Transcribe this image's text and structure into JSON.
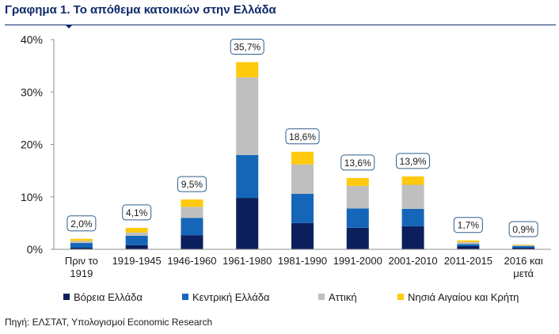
{
  "title": "Γραφημα 1. Το απόθεμα κατοικιών στην Ελλάδα",
  "source": "Πηγή: ΕΛΣΤΑΤ, Υπολογισμοί Economic Research",
  "colors": {
    "rule": "#0f2a6b"
  },
  "chart_data": {
    "type": "bar",
    "stacked": true,
    "categories": [
      [
        "Πριν το",
        "1919"
      ],
      [
        "1919-1945"
      ],
      [
        "1946-1960"
      ],
      [
        "1961-1980"
      ],
      [
        "1981-1990"
      ],
      [
        "1991-2000"
      ],
      [
        "2001-2010"
      ],
      [
        "2011-2015"
      ],
      [
        "2016 και",
        "μετά"
      ]
    ],
    "series": [
      {
        "name": "Βόρεια Ελλάδα",
        "color": "#0b1f5c",
        "values": [
          0.3,
          0.8,
          2.7,
          9.8,
          5.0,
          4.1,
          4.4,
          0.6,
          0.3
        ]
      },
      {
        "name": "Κεντρική  Ελλάδα",
        "color": "#1566b8",
        "values": [
          0.9,
          1.8,
          3.3,
          8.2,
          5.6,
          3.7,
          3.3,
          0.4,
          0.3
        ]
      },
      {
        "name": "Αττική",
        "color": "#bfbfbf",
        "values": [
          0.4,
          0.6,
          2.1,
          14.8,
          5.6,
          4.3,
          4.6,
          0.4,
          0.2
        ]
      },
      {
        "name": "Νησιά Αιγαίου και Κρήτη",
        "color": "#ffc90e",
        "values": [
          0.4,
          0.9,
          1.4,
          2.9,
          2.4,
          1.5,
          1.6,
          0.3,
          0.1
        ]
      }
    ],
    "totals": [
      "2,0%",
      "4,1%",
      "9,5%",
      "35,7%",
      "18,6%",
      "13,6%",
      "13,9%",
      "1,7%",
      "0,9%"
    ],
    "total_values": [
      2.0,
      4.1,
      9.5,
      35.7,
      18.6,
      13.6,
      13.9,
      1.7,
      0.9
    ],
    "ylim": [
      0,
      40
    ],
    "yticks": [
      0,
      10,
      20,
      30,
      40
    ],
    "ytick_labels": [
      "0%",
      "10%",
      "20%",
      "30%",
      "40%"
    ],
    "grid": false,
    "legend": "bottom"
  }
}
